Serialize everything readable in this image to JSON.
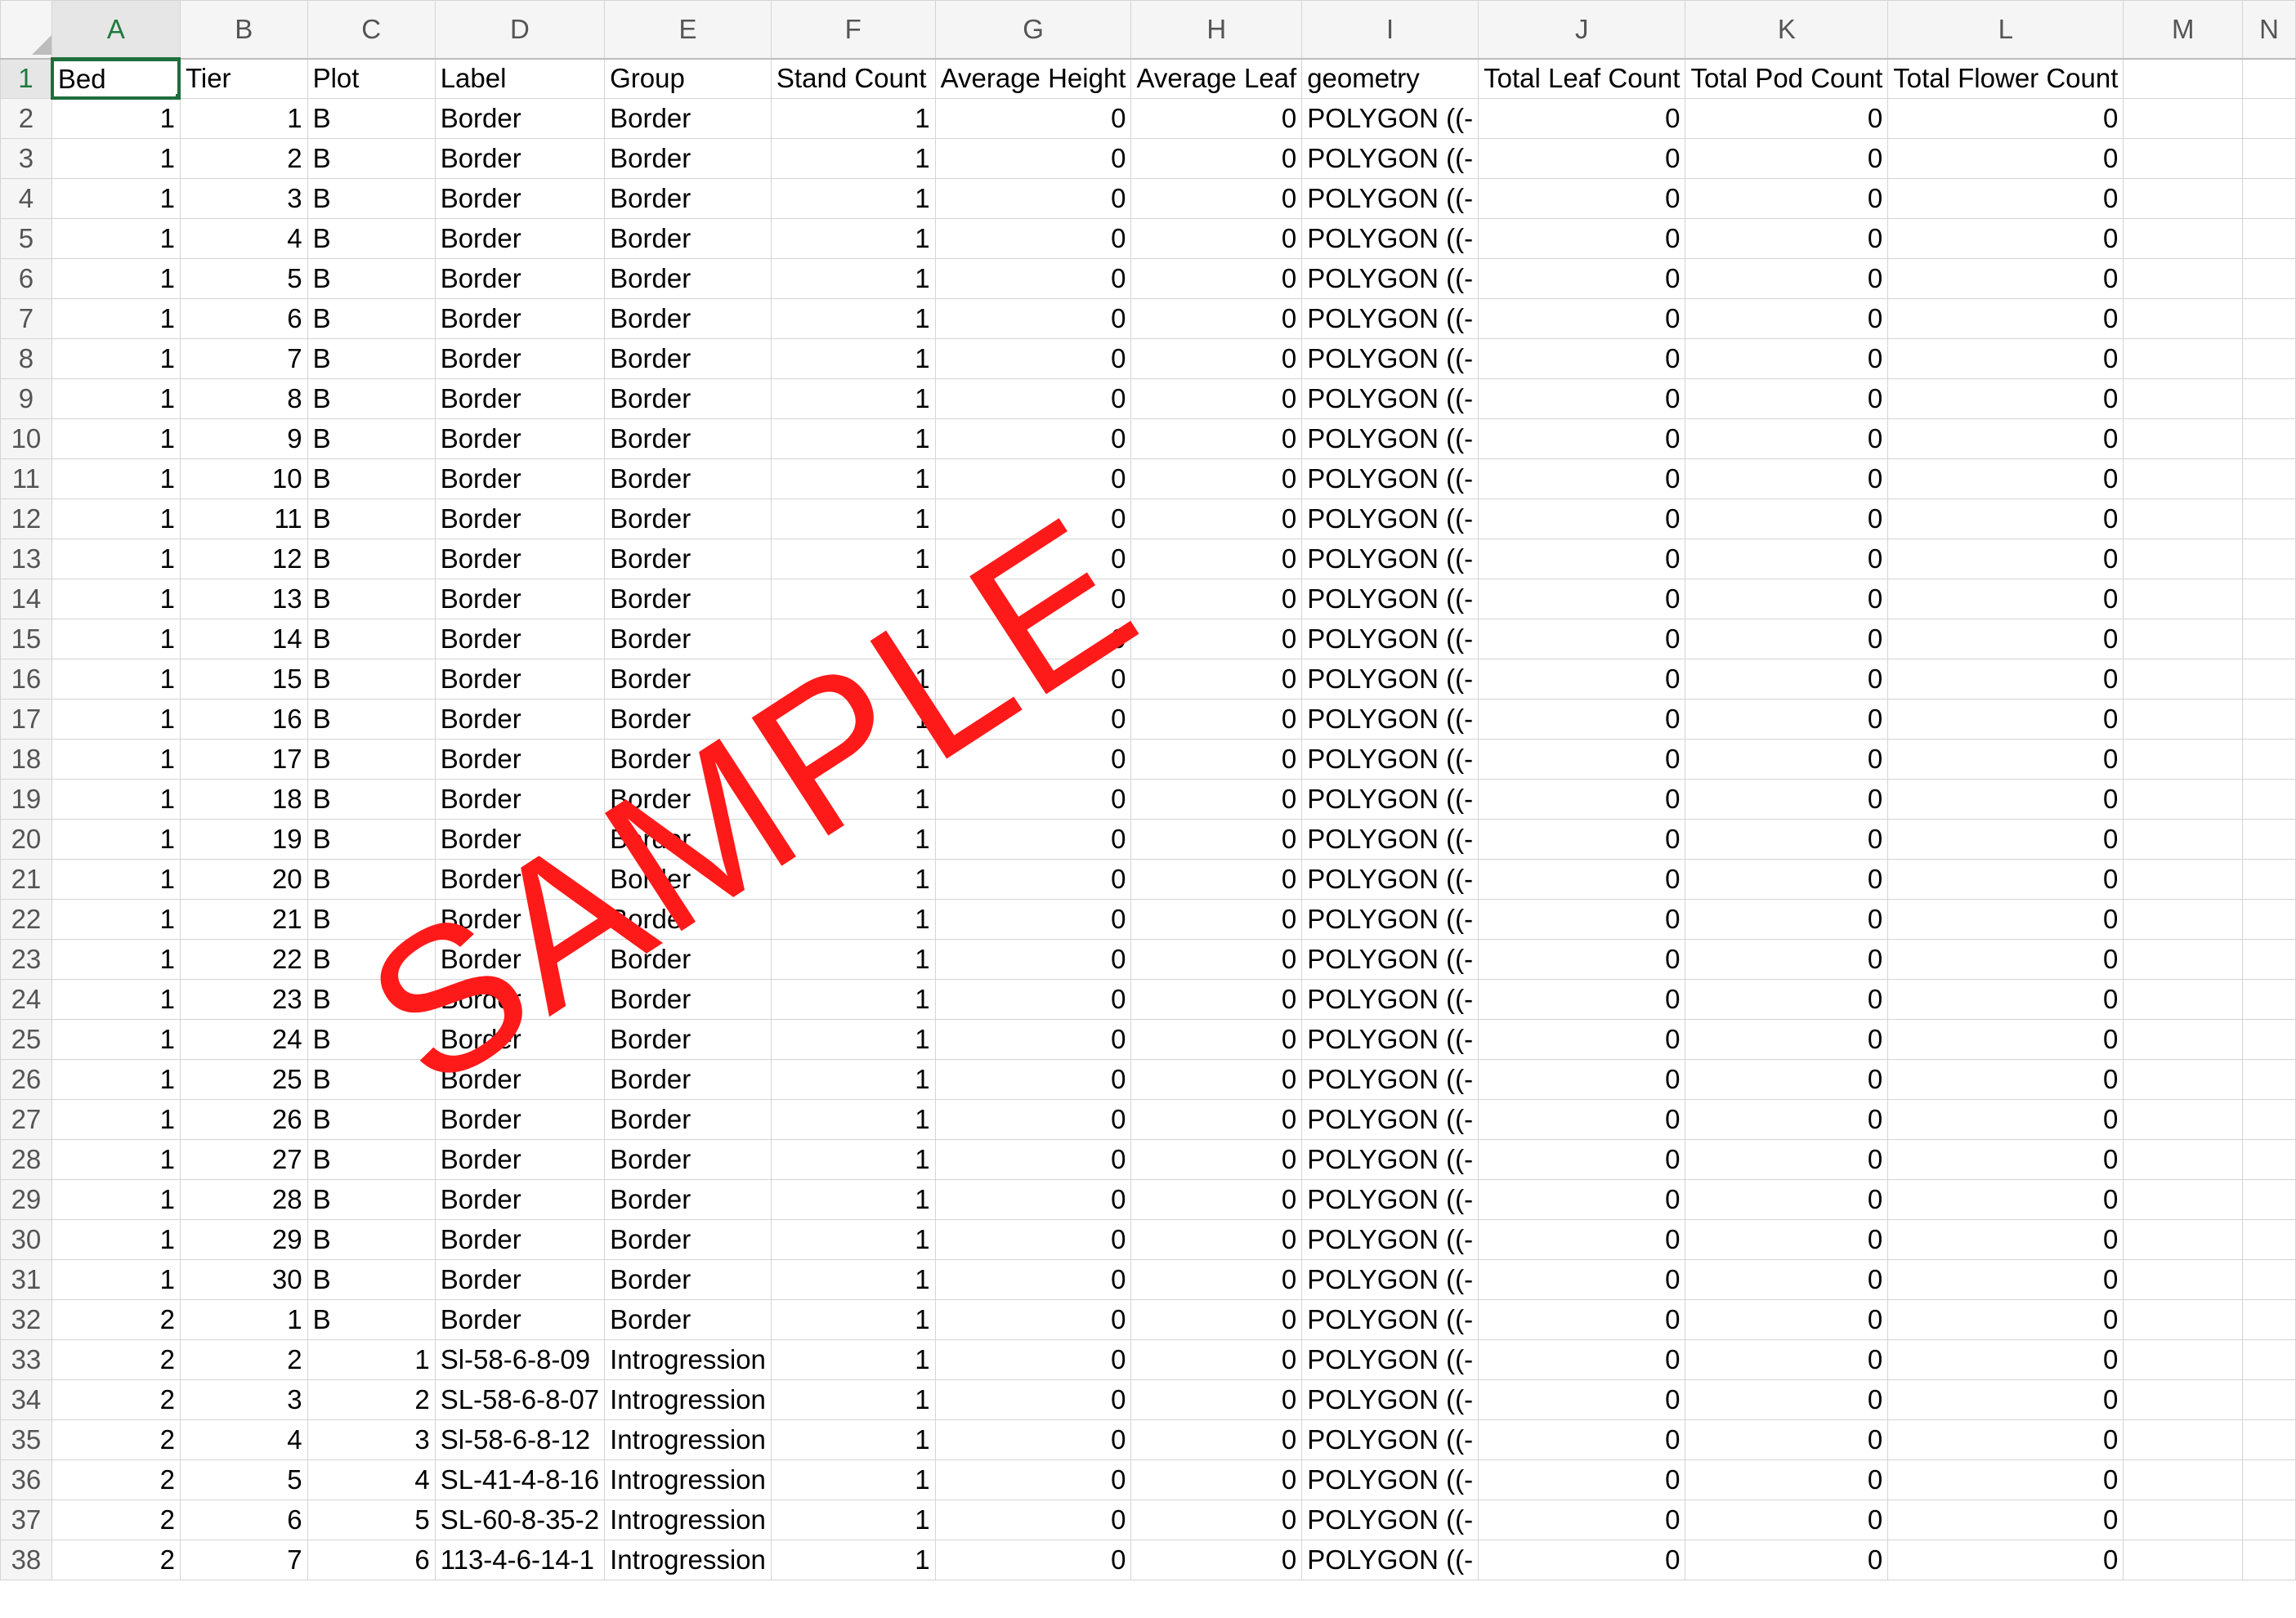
{
  "sheet": {
    "columns": [
      "A",
      "B",
      "C",
      "D",
      "E",
      "F",
      "G",
      "H",
      "I",
      "J",
      "K",
      "L",
      "M",
      "N"
    ],
    "headers": [
      "Bed",
      "Tier",
      "Plot",
      "Label",
      "Group",
      "Stand Count",
      "Average Height",
      "Average Leaf",
      "geometry",
      "Total Leaf Count",
      "Total Pod Count",
      "Total Flower Count",
      "",
      ""
    ],
    "active_cell": "A1",
    "rows": [
      [
        "1",
        "1",
        "B",
        "Border",
        "Border",
        "1",
        "0",
        "0",
        "POLYGON ((-",
        "0",
        "0",
        "0"
      ],
      [
        "1",
        "2",
        "B",
        "Border",
        "Border",
        "1",
        "0",
        "0",
        "POLYGON ((-",
        "0",
        "0",
        "0"
      ],
      [
        "1",
        "3",
        "B",
        "Border",
        "Border",
        "1",
        "0",
        "0",
        "POLYGON ((-",
        "0",
        "0",
        "0"
      ],
      [
        "1",
        "4",
        "B",
        "Border",
        "Border",
        "1",
        "0",
        "0",
        "POLYGON ((-",
        "0",
        "0",
        "0"
      ],
      [
        "1",
        "5",
        "B",
        "Border",
        "Border",
        "1",
        "0",
        "0",
        "POLYGON ((-",
        "0",
        "0",
        "0"
      ],
      [
        "1",
        "6",
        "B",
        "Border",
        "Border",
        "1",
        "0",
        "0",
        "POLYGON ((-",
        "0",
        "0",
        "0"
      ],
      [
        "1",
        "7",
        "B",
        "Border",
        "Border",
        "1",
        "0",
        "0",
        "POLYGON ((-",
        "0",
        "0",
        "0"
      ],
      [
        "1",
        "8",
        "B",
        "Border",
        "Border",
        "1",
        "0",
        "0",
        "POLYGON ((-",
        "0",
        "0",
        "0"
      ],
      [
        "1",
        "9",
        "B",
        "Border",
        "Border",
        "1",
        "0",
        "0",
        "POLYGON ((-",
        "0",
        "0",
        "0"
      ],
      [
        "1",
        "10",
        "B",
        "Border",
        "Border",
        "1",
        "0",
        "0",
        "POLYGON ((-",
        "0",
        "0",
        "0"
      ],
      [
        "1",
        "11",
        "B",
        "Border",
        "Border",
        "1",
        "0",
        "0",
        "POLYGON ((-",
        "0",
        "0",
        "0"
      ],
      [
        "1",
        "12",
        "B",
        "Border",
        "Border",
        "1",
        "0",
        "0",
        "POLYGON ((-",
        "0",
        "0",
        "0"
      ],
      [
        "1",
        "13",
        "B",
        "Border",
        "Border",
        "1",
        "0",
        "0",
        "POLYGON ((-",
        "0",
        "0",
        "0"
      ],
      [
        "1",
        "14",
        "B",
        "Border",
        "Border",
        "1",
        "0",
        "0",
        "POLYGON ((-",
        "0",
        "0",
        "0"
      ],
      [
        "1",
        "15",
        "B",
        "Border",
        "Border",
        "1",
        "0",
        "0",
        "POLYGON ((-",
        "0",
        "0",
        "0"
      ],
      [
        "1",
        "16",
        "B",
        "Border",
        "Border",
        "1",
        "0",
        "0",
        "POLYGON ((-",
        "0",
        "0",
        "0"
      ],
      [
        "1",
        "17",
        "B",
        "Border",
        "Border",
        "1",
        "0",
        "0",
        "POLYGON ((-",
        "0",
        "0",
        "0"
      ],
      [
        "1",
        "18",
        "B",
        "Border",
        "Border",
        "1",
        "0",
        "0",
        "POLYGON ((-",
        "0",
        "0",
        "0"
      ],
      [
        "1",
        "19",
        "B",
        "Border",
        "Border",
        "1",
        "0",
        "0",
        "POLYGON ((-",
        "0",
        "0",
        "0"
      ],
      [
        "1",
        "20",
        "B",
        "Border",
        "Border",
        "1",
        "0",
        "0",
        "POLYGON ((-",
        "0",
        "0",
        "0"
      ],
      [
        "1",
        "21",
        "B",
        "Border",
        "Border",
        "1",
        "0",
        "0",
        "POLYGON ((-",
        "0",
        "0",
        "0"
      ],
      [
        "1",
        "22",
        "B",
        "Border",
        "Border",
        "1",
        "0",
        "0",
        "POLYGON ((-",
        "0",
        "0",
        "0"
      ],
      [
        "1",
        "23",
        "B",
        "Border",
        "Border",
        "1",
        "0",
        "0",
        "POLYGON ((-",
        "0",
        "0",
        "0"
      ],
      [
        "1",
        "24",
        "B",
        "Border",
        "Border",
        "1",
        "0",
        "0",
        "POLYGON ((-",
        "0",
        "0",
        "0"
      ],
      [
        "1",
        "25",
        "B",
        "Border",
        "Border",
        "1",
        "0",
        "0",
        "POLYGON ((-",
        "0",
        "0",
        "0"
      ],
      [
        "1",
        "26",
        "B",
        "Border",
        "Border",
        "1",
        "0",
        "0",
        "POLYGON ((-",
        "0",
        "0",
        "0"
      ],
      [
        "1",
        "27",
        "B",
        "Border",
        "Border",
        "1",
        "0",
        "0",
        "POLYGON ((-",
        "0",
        "0",
        "0"
      ],
      [
        "1",
        "28",
        "B",
        "Border",
        "Border",
        "1",
        "0",
        "0",
        "POLYGON ((-",
        "0",
        "0",
        "0"
      ],
      [
        "1",
        "29",
        "B",
        "Border",
        "Border",
        "1",
        "0",
        "0",
        "POLYGON ((-",
        "0",
        "0",
        "0"
      ],
      [
        "1",
        "30",
        "B",
        "Border",
        "Border",
        "1",
        "0",
        "0",
        "POLYGON ((-",
        "0",
        "0",
        "0"
      ],
      [
        "2",
        "1",
        "B",
        "Border",
        "Border",
        "1",
        "0",
        "0",
        "POLYGON ((-",
        "0",
        "0",
        "0"
      ],
      [
        "2",
        "2",
        "1",
        "Sl-58-6-8-09",
        "Introgression",
        "1",
        "0",
        "0",
        "POLYGON ((-",
        "0",
        "0",
        "0"
      ],
      [
        "2",
        "3",
        "2",
        "SL-58-6-8-07",
        "Introgression",
        "1",
        "0",
        "0",
        "POLYGON ((-",
        "0",
        "0",
        "0"
      ],
      [
        "2",
        "4",
        "3",
        "Sl-58-6-8-12",
        "Introgression",
        "1",
        "0",
        "0",
        "POLYGON ((-",
        "0",
        "0",
        "0"
      ],
      [
        "2",
        "5",
        "4",
        "SL-41-4-8-16",
        "Introgression",
        "1",
        "0",
        "0",
        "POLYGON ((-",
        "0",
        "0",
        "0"
      ],
      [
        "2",
        "6",
        "5",
        "SL-60-8-35-2",
        "Introgression",
        "1",
        "0",
        "0",
        "POLYGON ((-",
        "0",
        "0",
        "0"
      ],
      [
        "2",
        "7",
        "6",
        "113-4-6-14-1",
        "Introgression",
        "1",
        "0",
        "0",
        "POLYGON ((-",
        "0",
        "0",
        "0"
      ]
    ]
  },
  "watermark": {
    "text": "SAMPLE",
    "color": "#ff1a1a"
  },
  "colors": {
    "accent": "#1f7a3f",
    "header_bg": "#f5f5f5",
    "gridline": "#d4d4d4"
  }
}
